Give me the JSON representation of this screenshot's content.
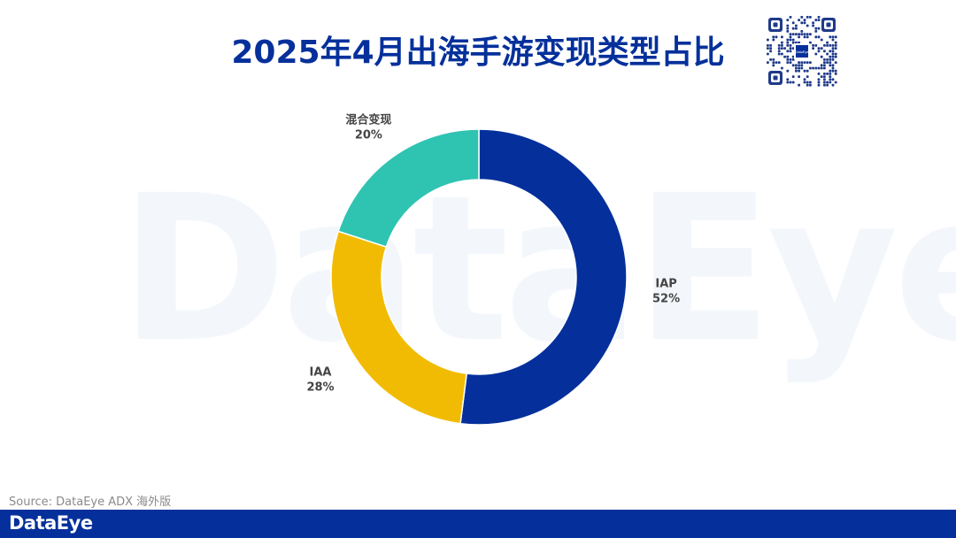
{
  "header": {
    "title": "2025年4月出海手游变现类型占比"
  },
  "watermark": {
    "text": "DataEye"
  },
  "qr": {
    "logo_text": "DataEye"
  },
  "chart_data": {
    "type": "pie",
    "title": "2025年4月出海手游变现类型占比",
    "donut": true,
    "slices": [
      {
        "label": "IAP",
        "value": 52,
        "pct_text": "52%",
        "color": "#05309b"
      },
      {
        "label": "IAA",
        "value": 28,
        "pct_text": "28%",
        "color": "#f2bb03"
      },
      {
        "label": "混合变现",
        "value": 20,
        "pct_text": "20%",
        "color": "#2fc3b2"
      }
    ]
  },
  "source": {
    "text": "Source: DataEye ADX 海外版"
  },
  "footer": {
    "logo_text": "DataEye"
  }
}
